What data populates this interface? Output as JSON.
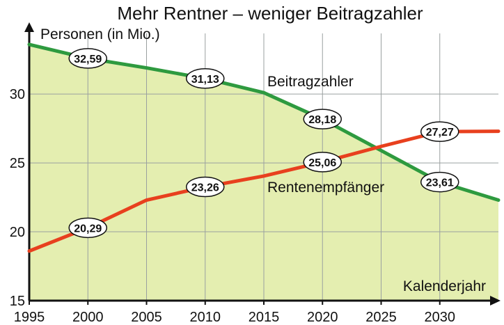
{
  "chart_data": {
    "type": "line",
    "title": "Mehr Rentner – weniger Beitragzahler",
    "ylabel": "Personen (in Mio.)",
    "xlabel": "Kalenderjahr",
    "xlim": [
      1995,
      2035
    ],
    "ylim": [
      15,
      34
    ],
    "x_ticks": [
      1995,
      2000,
      2005,
      2010,
      2015,
      2020,
      2025,
      2030
    ],
    "y_ticks": [
      15,
      20,
      25,
      30
    ],
    "grid": true,
    "colors": {
      "beitrag": "#2e9a3f",
      "rente": "#e8401e",
      "fill": "#e4eeb0",
      "grid": "#9aa0a0"
    },
    "series": [
      {
        "name": "Beitragzahler",
        "points": [
          [
            1995,
            33.6
          ],
          [
            2000,
            32.59
          ],
          [
            2005,
            31.9
          ],
          [
            2010,
            31.13
          ],
          [
            2015,
            30.1
          ],
          [
            2020,
            28.18
          ],
          [
            2025,
            25.9
          ],
          [
            2030,
            23.61
          ],
          [
            2035,
            22.3
          ]
        ],
        "labels": [
          {
            "x": 2000,
            "y": 32.59,
            "text": "32,59"
          },
          {
            "x": 2010,
            "y": 31.13,
            "text": "31,13"
          },
          {
            "x": 2020,
            "y": 28.18,
            "text": "28,18"
          },
          {
            "x": 2030,
            "y": 23.61,
            "text": "23,61"
          }
        ]
      },
      {
        "name": "Rentenempfänger",
        "points": [
          [
            1995,
            18.6
          ],
          [
            2000,
            20.29
          ],
          [
            2005,
            22.3
          ],
          [
            2010,
            23.26
          ],
          [
            2015,
            24.05
          ],
          [
            2020,
            25.06
          ],
          [
            2025,
            26.2
          ],
          [
            2030,
            27.27
          ],
          [
            2035,
            27.3
          ]
        ],
        "labels": [
          {
            "x": 2000,
            "y": 20.29,
            "text": "20,29"
          },
          {
            "x": 2010,
            "y": 23.26,
            "text": "23,26"
          },
          {
            "x": 2020,
            "y": 25.06,
            "text": "25,06"
          },
          {
            "x": 2030,
            "y": 27.27,
            "text": "27,27"
          }
        ]
      }
    ]
  }
}
